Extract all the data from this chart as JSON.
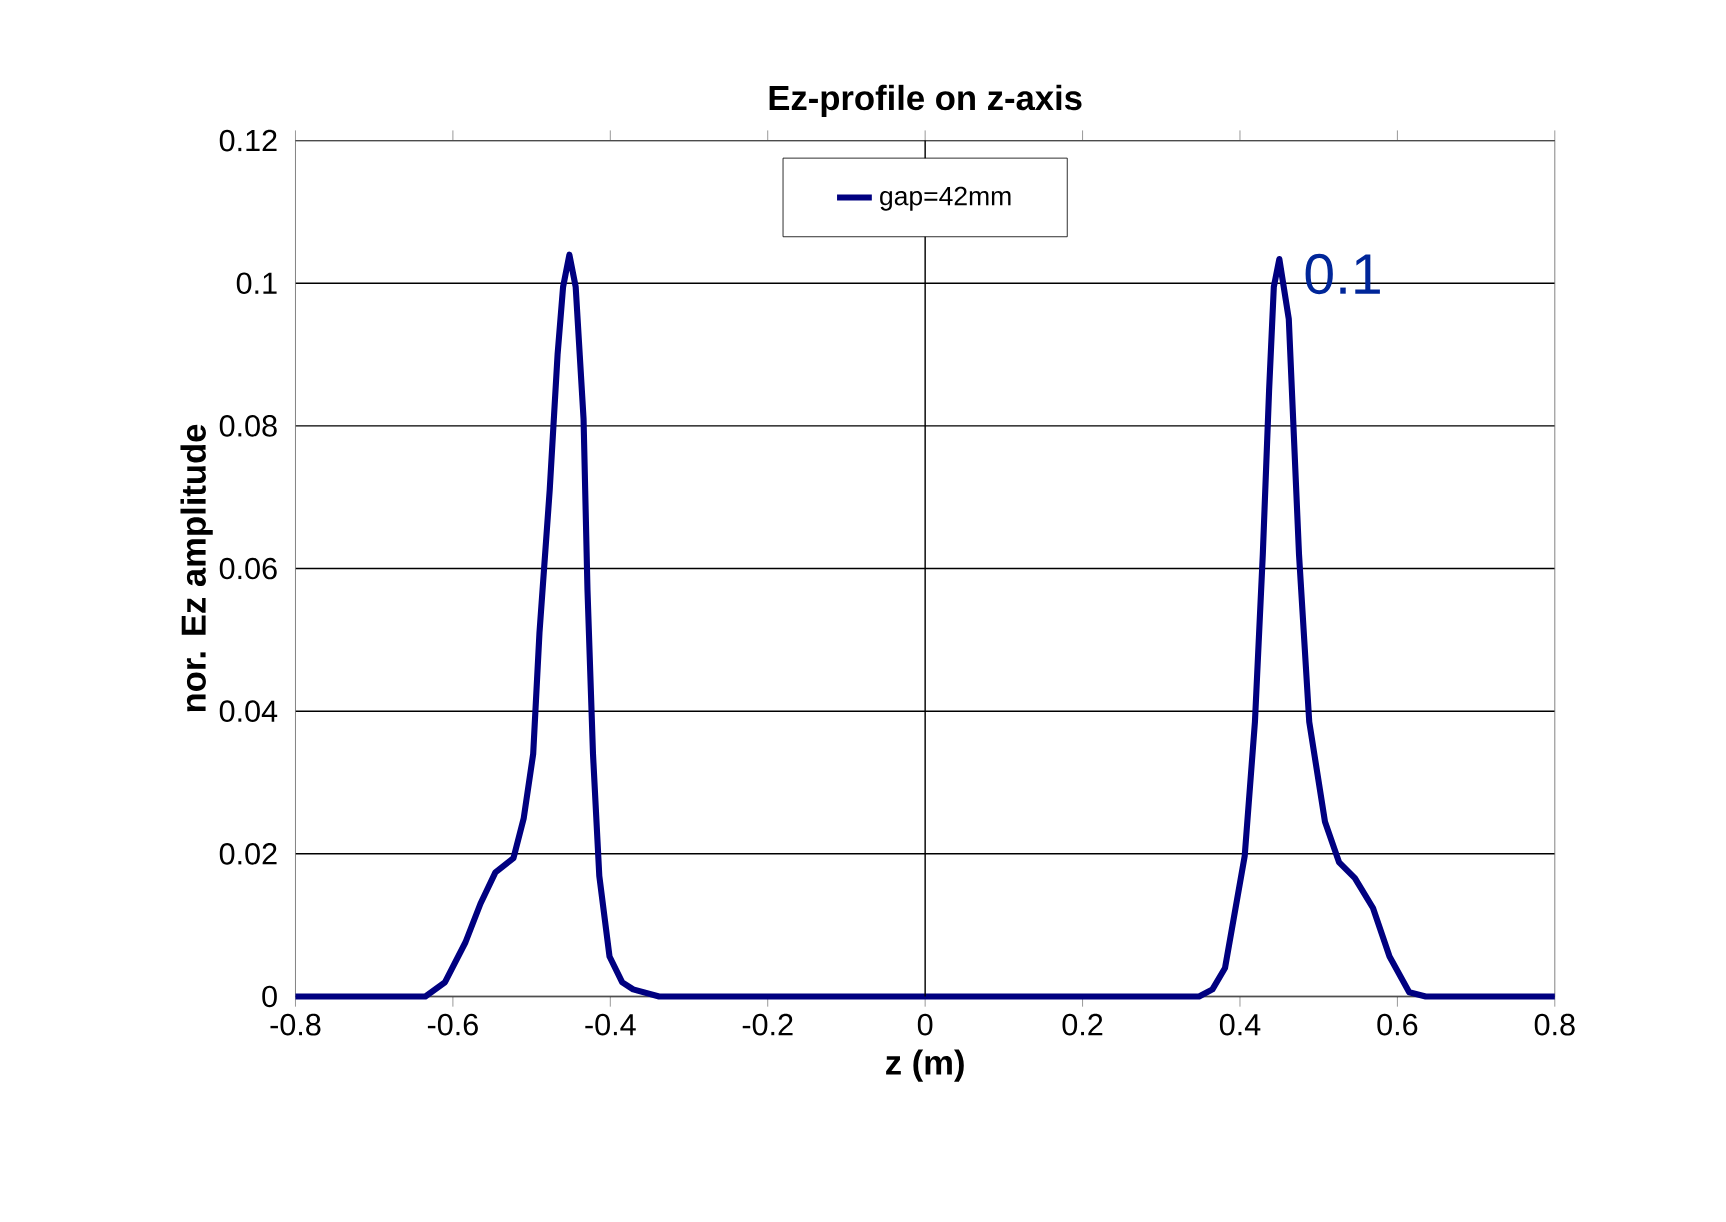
{
  "chart_data": {
    "type": "line",
    "title": "Ez-profile on z-axis",
    "xlabel": "z (m)",
    "ylabel": "nor. Ez amplitude",
    "series": [
      {
        "name": "gap=42mm",
        "color": "#000080",
        "x": [
          -0.8,
          -0.7,
          -0.65,
          -0.635,
          -0.61,
          -0.584,
          -0.565,
          -0.546,
          -0.523,
          -0.51,
          -0.498,
          -0.49,
          -0.477,
          -0.467,
          -0.46,
          -0.452,
          -0.444,
          -0.434,
          -0.429,
          -0.422,
          -0.414,
          -0.401,
          -0.385,
          -0.371,
          -0.338,
          -0.2,
          0,
          0.2,
          0.348,
          0.365,
          0.381,
          0.406,
          0.419,
          0.429,
          0.437,
          0.443,
          0.45,
          0.462,
          0.475,
          0.488,
          0.508,
          0.526,
          0.546,
          0.569,
          0.59,
          0.615,
          0.636,
          0.7,
          0.8
        ],
        "values": [
          0,
          0,
          0,
          0,
          0.002,
          0.0076,
          0.013,
          0.0174,
          0.0194,
          0.025,
          0.034,
          0.051,
          0.071,
          0.09,
          0.0995,
          0.104,
          0.0995,
          0.081,
          0.057,
          0.034,
          0.0169,
          0.0056,
          0.002,
          0.001,
          0,
          0,
          0,
          0,
          0,
          0.001,
          0.004,
          0.0197,
          0.0385,
          0.062,
          0.085,
          0.0995,
          0.1034,
          0.095,
          0.062,
          0.0385,
          0.0245,
          0.0188,
          0.0166,
          0.0124,
          0.0056,
          0.0006,
          0,
          0,
          0
        ]
      }
    ],
    "xlim": [
      -0.8,
      0.8
    ],
    "xticks": [
      -0.8,
      -0.6,
      -0.4,
      -0.2,
      0,
      0.2,
      0.4,
      0.6,
      0.8
    ],
    "ylim": [
      0,
      0.12
    ],
    "yticks": [
      0,
      0.02,
      0.04,
      0.06,
      0.08,
      0.1,
      0.12
    ],
    "grid": "y",
    "legend": "top",
    "line_style": "solid",
    "marker": "none",
    "ref_lines": [
      {
        "axis": "x",
        "value": 0
      }
    ],
    "annotations": [
      "0.1"
    ]
  }
}
